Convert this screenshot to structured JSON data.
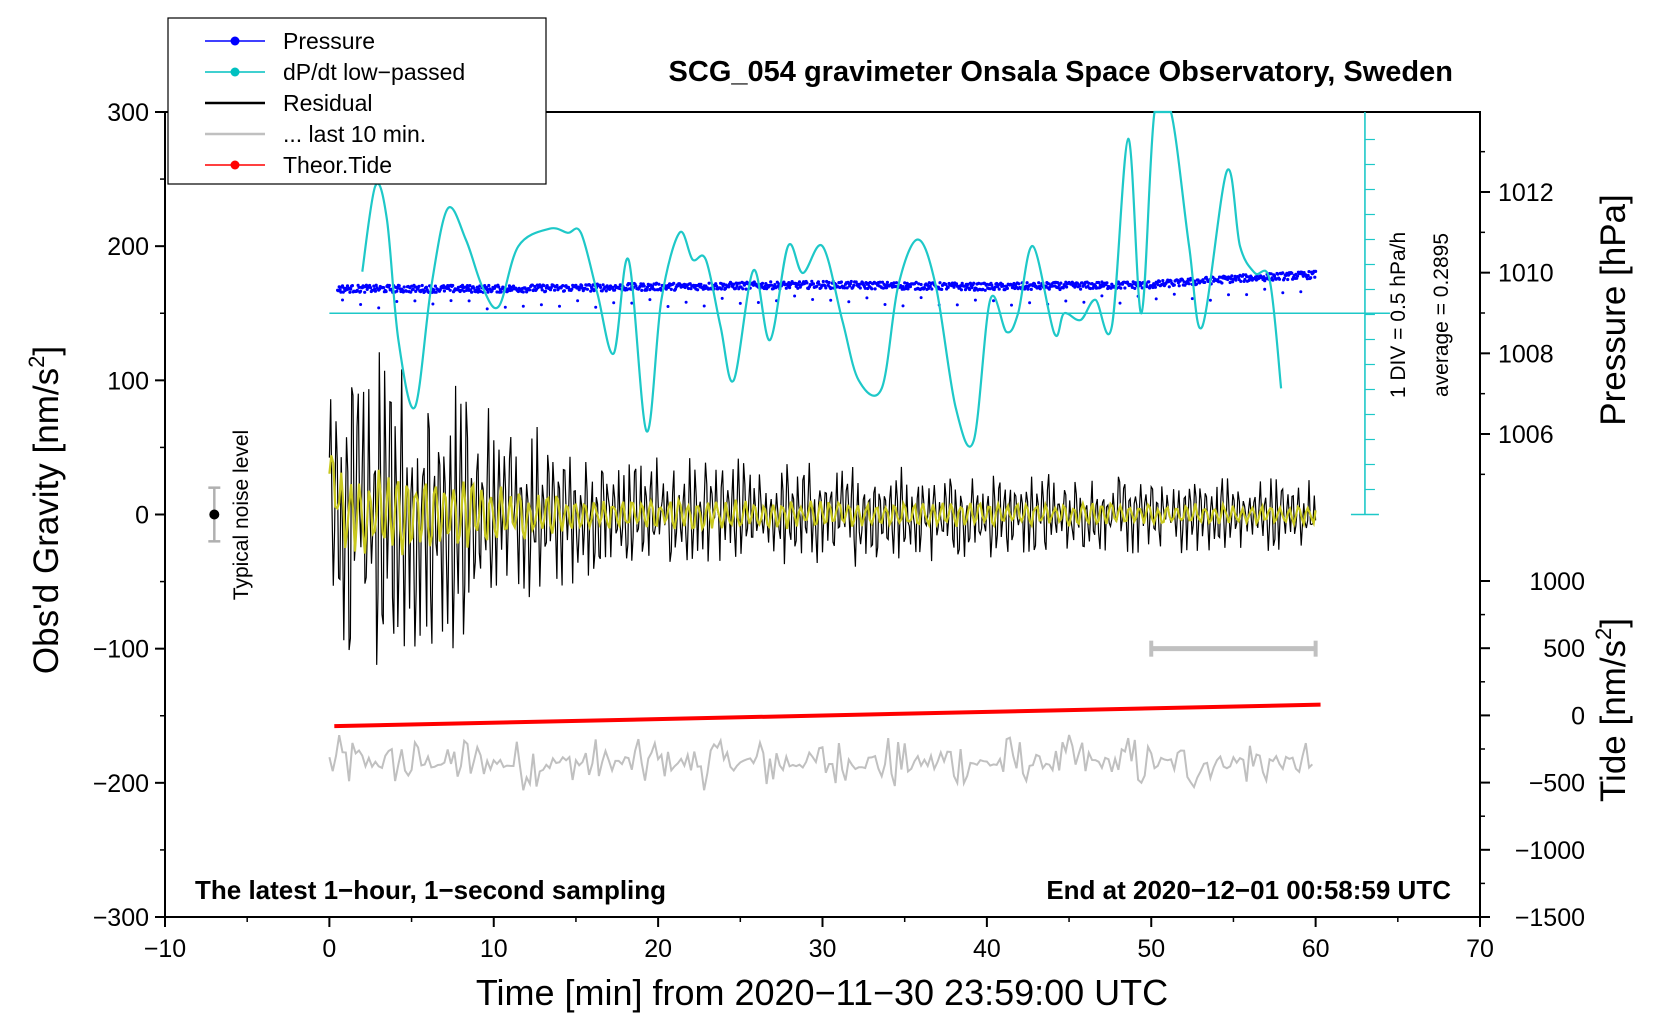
{
  "chart_data": {
    "type": "line",
    "title": "SCG_054 gravimeter Onsala Space Observatory, Sweden",
    "xlabel": "Time [min] from 2020−11−30 23:59:00 UTC",
    "ylabel_left": "Obs'd Gravity [nm/s",
    "ylabel_left_sup": "2",
    "ylabel_left_close": "]",
    "ylabel_right_pressure": "Pressure [hPa]",
    "ylabel_right_tide": "Tide [nm/s",
    "ylabel_right_tide_sup": "2",
    "ylabel_right_tide_close": "]",
    "xlim": [
      -10,
      70
    ],
    "ylim_gravity": [
      -300,
      300
    ],
    "ylim_pressure": [
      1004,
      1014
    ],
    "ylim_tide": [
      -1500,
      1500
    ],
    "x_ticks": [
      "−10",
      "0",
      "10",
      "20",
      "30",
      "40",
      "50",
      "60",
      "70"
    ],
    "x_tick_values": [
      -10,
      0,
      10,
      20,
      30,
      40,
      50,
      60,
      70
    ],
    "y_ticks_gravity": [
      "300",
      "200",
      "100",
      "0",
      "−100",
      "−200",
      "−300"
    ],
    "y_tick_values_gravity": [
      300,
      200,
      100,
      0,
      -100,
      -200,
      -300
    ],
    "y_ticks_pressure": [
      "1012",
      "1010",
      "1008",
      "1006"
    ],
    "y_tick_values_pressure": [
      1012,
      1010,
      1008,
      1006
    ],
    "y_ticks_tide": [
      "1000",
      "500",
      "0",
      "−500",
      "−1000",
      "−1500"
    ],
    "y_tick_values_tide": [
      1000,
      500,
      0,
      -500,
      -1000,
      -1500
    ],
    "legend": [
      {
        "label": "Pressure",
        "color": "#0000ff",
        "marker": true
      },
      {
        "label": "dP/dt low−passed",
        "color": "#00c0c0",
        "marker": true
      },
      {
        "label": "Residual",
        "color": "#000000",
        "marker": false
      },
      {
        "label": "... last 10 min.",
        "color": "#c0c0c0",
        "marker": false
      },
      {
        "label": "Theor.Tide",
        "color": "#ff0000",
        "marker": true
      }
    ],
    "colors": {
      "pressure": "#0000ff",
      "dpdt": "#1ec8c8",
      "residual": "#000000",
      "residual_smooth": "#c8c81e",
      "last10": "#c0c0c0",
      "tide": "#ff0000",
      "noise_bar": "#b0b0b0"
    },
    "annotations": {
      "noise_label": "Typical noise level",
      "noise_level": 20,
      "noise_x": -7,
      "dpdt_scale": "1 DIV = 0.5 hPa/h",
      "dpdt_average": "average = 0.2895",
      "bottom_left": "The latest 1−hour, 1−second sampling",
      "bottom_right": "End at 2020−12−01 00:58:59 UTC"
    },
    "pressure_series": {
      "x": [
        0.5,
        10,
        20,
        30,
        40,
        50,
        55,
        60
      ],
      "y": [
        1009.6,
        1009.6,
        1009.65,
        1009.7,
        1009.65,
        1009.7,
        1009.85,
        1009.95
      ]
    },
    "dpdt_series": {
      "x": [
        2,
        2.8,
        3.5,
        4.2,
        5.2,
        6.2,
        7.2,
        8.3,
        9.3,
        10.3,
        11.5,
        13.4,
        14.5,
        15.3,
        16.3,
        17.3,
        18.2,
        19.3,
        20.2,
        21.3,
        22.1,
        22.9,
        23.8,
        24.6,
        25.8,
        26.8,
        27.9,
        28.8,
        30,
        31.2,
        32.2,
        33.6,
        34.6,
        35.8,
        36.9,
        38.1,
        39.2,
        40.2,
        41.2,
        41.9,
        42.8,
        44.1,
        44.7,
        45.7,
        46.6,
        47.6,
        48.6,
        49.4,
        50.2,
        51.2,
        52.3,
        53.1,
        54.6,
        55.4,
        56.3,
        57.2,
        57.9
      ],
      "y": [
        181,
        245,
        220,
        130,
        80,
        170,
        228,
        205,
        170,
        155,
        200,
        213,
        210,
        210,
        165,
        120,
        190,
        62,
        160,
        210,
        190,
        190,
        140,
        100,
        182,
        130,
        200,
        180,
        200,
        145,
        100,
        94,
        170,
        205,
        170,
        80,
        55,
        160,
        136,
        150,
        200,
        135,
        150,
        145,
        160,
        140,
        280,
        150,
        300,
        300,
        200,
        140,
        256,
        200,
        180,
        175,
        94
      ]
    },
    "dpdt_baseline": 150,
    "dpdt_zero_axis_x": 63,
    "residual_envelope": {
      "x": [
        0,
        2,
        5,
        10,
        15,
        20,
        30,
        40,
        50,
        60
      ],
      "amp": [
        100,
        110,
        110,
        75,
        45,
        40,
        35,
        30,
        28,
        25
      ]
    },
    "tide_series": {
      "x": [
        0.3,
        60.3
      ],
      "y": [
        -80,
        80
      ]
    },
    "last10_series": {
      "x_range": [
        0,
        60
      ],
      "center": -185,
      "amp": 22
    },
    "last10_marker": {
      "x": [
        50,
        60
      ],
      "y": -100
    }
  }
}
